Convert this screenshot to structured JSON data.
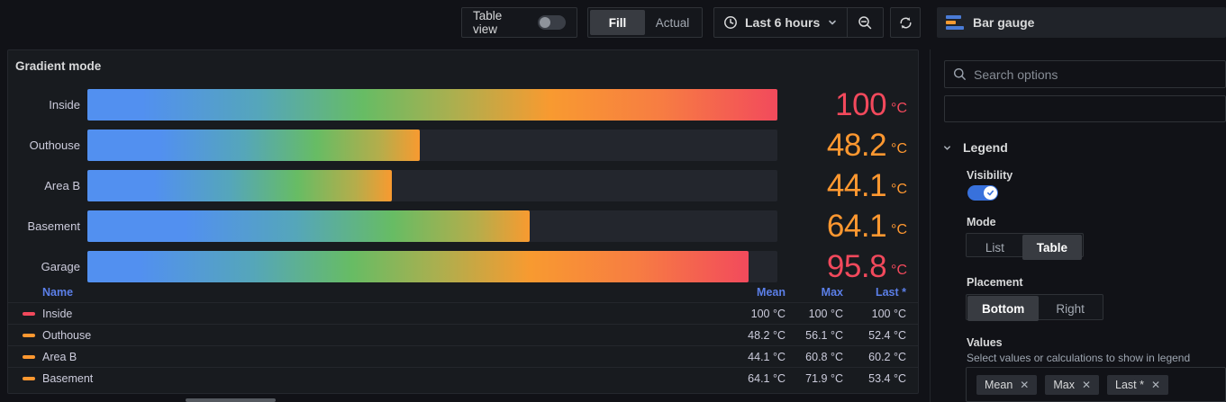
{
  "toolbar": {
    "table_view_label": "Table view",
    "table_view_on": false,
    "display_mode_options": [
      "Fill",
      "Actual"
    ],
    "display_mode_selected": "Fill",
    "time_range_label": "Last 6 hours"
  },
  "vis_picker": {
    "label": "Bar gauge"
  },
  "panel": {
    "title": "Gradient mode"
  },
  "chart_data": {
    "type": "bar",
    "subtype": "bar-gauge-horizontal-gradient",
    "title": "Gradient mode",
    "min": 0,
    "max": 100,
    "unit": "°C",
    "series": [
      {
        "name": "Inside",
        "value": 100,
        "display": "100",
        "color": "#F2495C"
      },
      {
        "name": "Outhouse",
        "value": 48.2,
        "display": "48.2",
        "color": "#FF9830"
      },
      {
        "name": "Area B",
        "value": 44.1,
        "display": "44.1",
        "color": "#FF9830"
      },
      {
        "name": "Basement",
        "value": 64.1,
        "display": "64.1",
        "color": "#FF9830"
      },
      {
        "name": "Garage",
        "value": 95.8,
        "display": "95.8",
        "color": "#F2495C"
      }
    ],
    "legend_table": {
      "headers": [
        "Name",
        "Mean",
        "Max",
        "Last *"
      ],
      "rows": [
        {
          "name": "Inside",
          "color": "#F2495C",
          "mean": "100 °C",
          "max": "100 °C",
          "last": "100 °C"
        },
        {
          "name": "Outhouse",
          "color": "#FF9830",
          "mean": "48.2 °C",
          "max": "56.1 °C",
          "last": "52.4 °C"
        },
        {
          "name": "Area B",
          "color": "#FF9830",
          "mean": "44.1 °C",
          "max": "60.8 °C",
          "last": "60.2 °C"
        },
        {
          "name": "Basement",
          "color": "#FF9830",
          "mean": "64.1 °C",
          "max": "71.9 °C",
          "last": "53.4 °C"
        }
      ]
    }
  },
  "sidebar": {
    "search_placeholder": "Search options",
    "legend": {
      "section_title": "Legend",
      "visibility_label": "Visibility",
      "visibility_on": true,
      "mode_label": "Mode",
      "mode_options": [
        "List",
        "Table"
      ],
      "mode_selected": "Table",
      "placement_label": "Placement",
      "placement_options": [
        "Bottom",
        "Right"
      ],
      "placement_selected": "Bottom",
      "values_label": "Values",
      "values_description": "Select values or calculations to show in legend",
      "values": [
        "Mean",
        "Max",
        "Last *"
      ]
    }
  },
  "colors": {
    "value_red": "#F2495C",
    "value_orange": "#FF9830",
    "header_blue": "#5B7FE8",
    "switch_blue": "#3871DC",
    "panel_bg": "#181B1F",
    "page_bg": "#111217"
  }
}
